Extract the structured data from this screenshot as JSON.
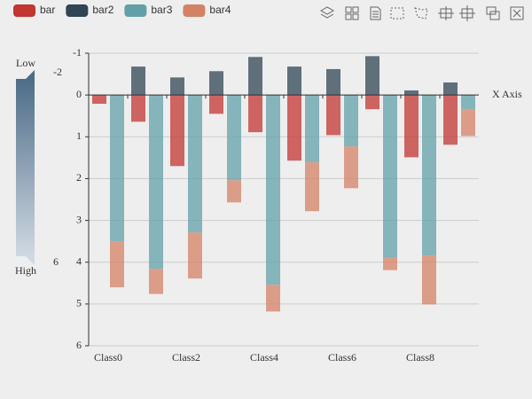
{
  "chart_data": {
    "type": "bar",
    "categories": [
      "Class0",
      null,
      "Class2",
      null,
      "Class4",
      null,
      "Class6",
      null,
      "Class8",
      null
    ],
    "series": [
      {
        "name": "bar",
        "color": "#c23531",
        "stack": "one",
        "values": [
          0.21,
          0.64,
          1.7,
          0.45,
          0.89,
          1.57,
          0.96,
          0.34,
          1.49,
          1.19
        ]
      },
      {
        "name": "bar2",
        "color": "#2f4554",
        "stack": "one",
        "values": [
          0,
          -0.68,
          -0.42,
          -0.57,
          -0.91,
          -0.68,
          -0.62,
          -0.93,
          -0.11,
          -0.3
        ]
      },
      {
        "name": "bar3",
        "color": "#61a0a8",
        "stack": "two",
        "values": [
          3.5,
          4.16,
          3.29,
          2.04,
          4.54,
          1.61,
          1.23,
          3.89,
          3.84,
          0.34
        ]
      },
      {
        "name": "bar4",
        "color": "#d48265",
        "stack": "two",
        "values": [
          1.1,
          0.6,
          1.1,
          0.53,
          0.64,
          1.17,
          1.0,
          0.3,
          1.17,
          0.64
        ]
      }
    ],
    "x_axis_label": "X Axis",
    "ylim": [
      -1,
      6
    ],
    "inverse": true,
    "yticks": [
      -1,
      0,
      1,
      2,
      3,
      4,
      5,
      6
    ],
    "grid": true,
    "visual_map": {
      "text": [
        "Low",
        "High"
      ],
      "min": -2,
      "max": 6
    }
  }
}
